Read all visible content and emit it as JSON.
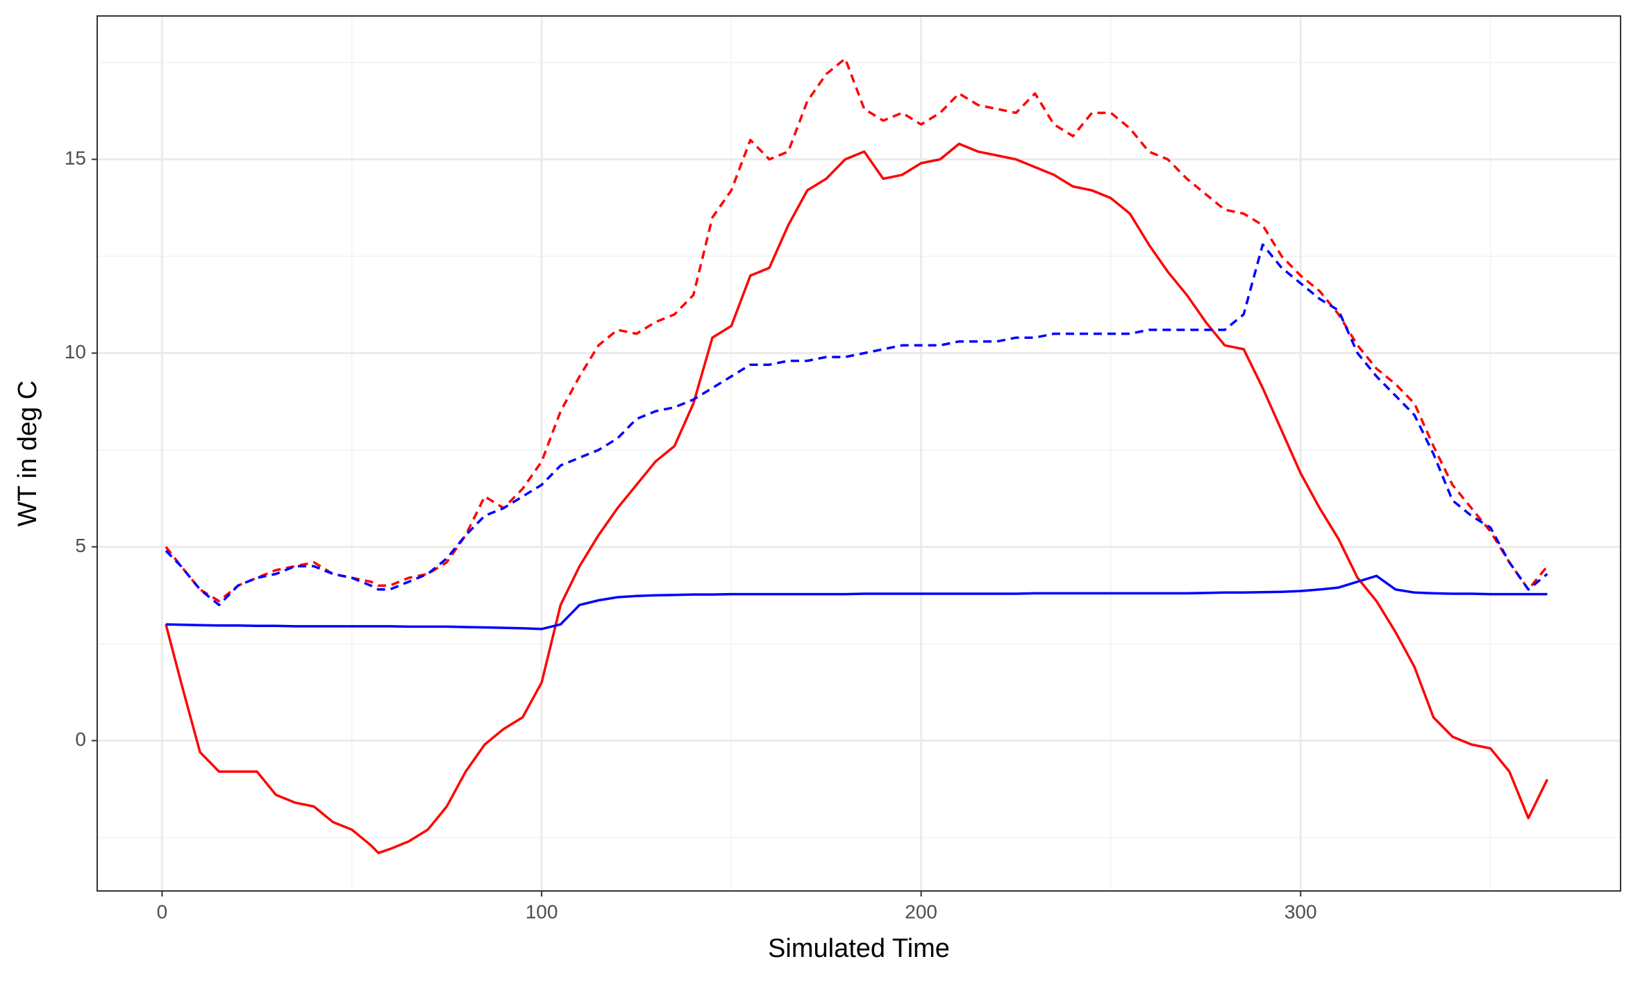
{
  "chart_data": {
    "type": "line",
    "x_label": "Simulated Time",
    "y_label": "WT in deg C",
    "x": [
      1,
      5,
      10,
      15,
      20,
      25,
      30,
      35,
      40,
      45,
      50,
      55,
      57,
      60,
      65,
      70,
      75,
      80,
      85,
      90,
      95,
      100,
      105,
      110,
      115,
      120,
      125,
      130,
      135,
      140,
      145,
      150,
      155,
      160,
      165,
      170,
      175,
      180,
      185,
      190,
      195,
      200,
      205,
      210,
      215,
      220,
      225,
      230,
      235,
      240,
      245,
      250,
      255,
      260,
      265,
      270,
      275,
      280,
      285,
      290,
      295,
      300,
      305,
      310,
      315,
      320,
      325,
      330,
      335,
      340,
      345,
      350,
      355,
      360,
      365
    ],
    "series": [
      {
        "color": "#ff0000",
        "linestyle": "dashed",
        "values": [
          5.0,
          4.5,
          3.9,
          3.6,
          4.0,
          4.2,
          4.4,
          4.5,
          4.6,
          4.3,
          4.2,
          4.1,
          4.0,
          4.0,
          4.2,
          4.3,
          4.6,
          5.3,
          6.3,
          6.0,
          6.5,
          7.2,
          8.5,
          9.4,
          10.2,
          10.6,
          10.5,
          10.8,
          11.0,
          11.5,
          13.5,
          14.2,
          15.5,
          15.0,
          15.2,
          16.5,
          17.2,
          17.6,
          16.3,
          16.0,
          16.2,
          15.9,
          16.2,
          16.7,
          16.4,
          16.3,
          16.2,
          16.7,
          15.9,
          15.6,
          16.2,
          16.2,
          15.8,
          15.2,
          15.0,
          14.5,
          14.1,
          13.7,
          13.6,
          13.3,
          12.5,
          12.0,
          11.6,
          11.0,
          10.2,
          9.6,
          9.2,
          8.7,
          7.6,
          6.6,
          6.0,
          5.4,
          4.6,
          3.9,
          4.5
        ]
      },
      {
        "color": "#ff0000",
        "linestyle": "solid",
        "values": [
          3.0,
          1.5,
          -0.3,
          -0.8,
          -0.8,
          -0.8,
          -1.4,
          -1.6,
          -1.7,
          -2.1,
          -2.3,
          -2.7,
          -2.9,
          -2.8,
          -2.6,
          -2.3,
          -1.7,
          -0.8,
          -0.1,
          0.3,
          0.6,
          1.5,
          3.5,
          4.5,
          5.3,
          6.0,
          6.6,
          7.2,
          7.6,
          8.7,
          10.4,
          10.7,
          12.0,
          12.2,
          13.3,
          14.2,
          14.5,
          15.0,
          15.2,
          14.5,
          14.6,
          14.9,
          15.0,
          15.4,
          15.2,
          15.1,
          15.0,
          14.8,
          14.6,
          14.3,
          14.2,
          14.0,
          13.6,
          12.8,
          12.1,
          11.5,
          10.8,
          10.2,
          10.1,
          9.1,
          8.0,
          6.9,
          6.0,
          5.2,
          4.2,
          3.6,
          2.8,
          1.9,
          0.6,
          0.1,
          -0.1,
          -0.2,
          -0.8,
          -2.0,
          -1.0
        ]
      },
      {
        "color": "#0000ff",
        "linestyle": "dashed",
        "values": [
          4.9,
          4.5,
          3.9,
          3.5,
          4.0,
          4.2,
          4.3,
          4.5,
          4.5,
          4.3,
          4.2,
          4.0,
          3.9,
          3.9,
          4.1,
          4.3,
          4.7,
          5.3,
          5.8,
          6.0,
          6.3,
          6.6,
          7.1,
          7.3,
          7.5,
          7.8,
          8.3,
          8.5,
          8.6,
          8.8,
          9.1,
          9.4,
          9.7,
          9.7,
          9.8,
          9.8,
          9.9,
          9.9,
          10.0,
          10.1,
          10.2,
          10.2,
          10.2,
          10.3,
          10.3,
          10.3,
          10.4,
          10.4,
          10.5,
          10.5,
          10.5,
          10.5,
          10.5,
          10.6,
          10.6,
          10.6,
          10.6,
          10.6,
          11.0,
          12.8,
          12.2,
          11.8,
          11.4,
          11.1,
          10.0,
          9.4,
          8.9,
          8.4,
          7.4,
          6.2,
          5.8,
          5.5,
          4.6,
          3.9,
          4.3
        ]
      },
      {
        "color": "#0000ff",
        "linestyle": "solid",
        "values": [
          3.0,
          2.99,
          2.98,
          2.97,
          2.97,
          2.96,
          2.96,
          2.95,
          2.95,
          2.95,
          2.95,
          2.95,
          2.95,
          2.95,
          2.94,
          2.94,
          2.94,
          2.93,
          2.92,
          2.91,
          2.9,
          2.88,
          3.0,
          3.5,
          3.62,
          3.7,
          3.73,
          3.75,
          3.76,
          3.77,
          3.77,
          3.78,
          3.78,
          3.78,
          3.78,
          3.78,
          3.78,
          3.78,
          3.79,
          3.79,
          3.79,
          3.79,
          3.79,
          3.79,
          3.79,
          3.79,
          3.79,
          3.8,
          3.8,
          3.8,
          3.8,
          3.8,
          3.8,
          3.8,
          3.8,
          3.8,
          3.81,
          3.82,
          3.82,
          3.83,
          3.84,
          3.86,
          3.9,
          3.95,
          4.1,
          4.25,
          3.9,
          3.82,
          3.8,
          3.79,
          3.79,
          3.78,
          3.78,
          3.78,
          3.78
        ]
      }
    ],
    "xlim": [
      -17.1,
      384.3
    ],
    "ylim": [
      -3.88,
      18.7
    ],
    "xticks": [
      0,
      100,
      200,
      300
    ],
    "yticks": [
      0,
      5,
      10,
      15
    ],
    "xminor": [
      50,
      150,
      250,
      350
    ],
    "yminor": [
      -2.5,
      2.5,
      7.5,
      12.5,
      17.5
    ],
    "grid": true
  }
}
